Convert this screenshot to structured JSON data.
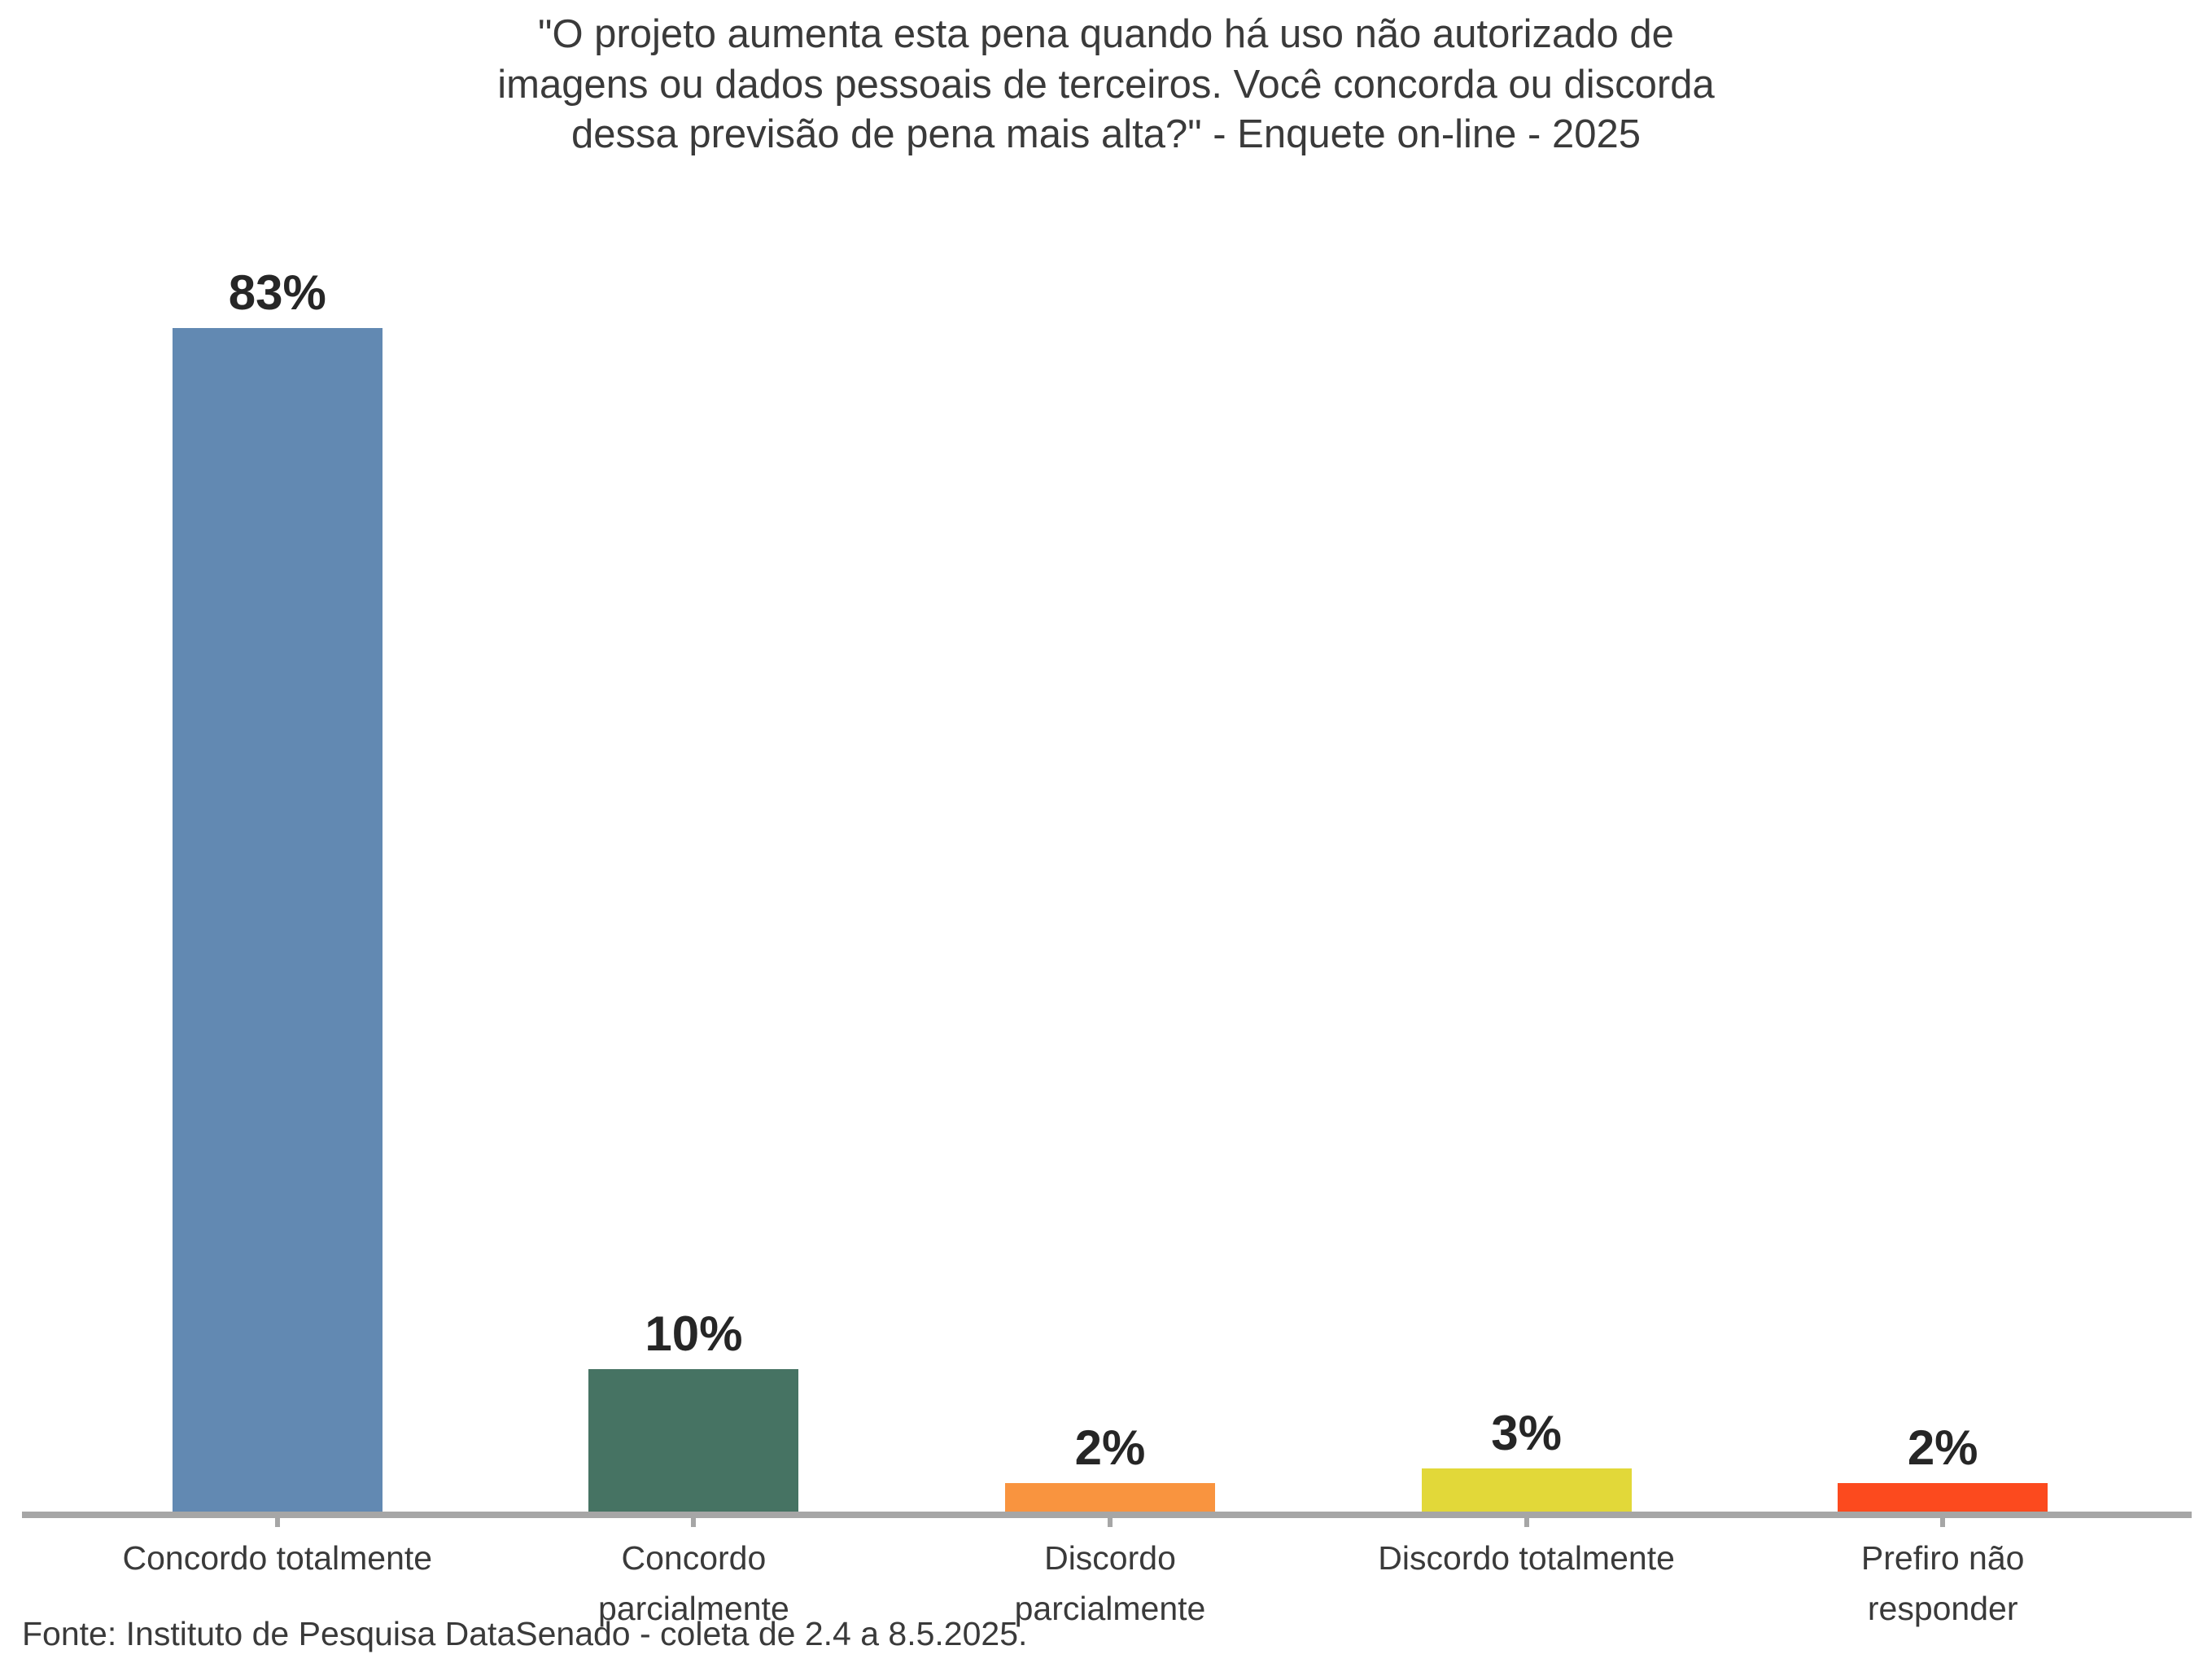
{
  "chart_data": {
    "type": "bar",
    "title": "\"O projeto aumenta esta pena quando há uso não autorizado de\nimagens ou dados pessoais de terceiros. Você concorda ou discorda\ndessa previsão de pena mais alta?\" - Enquete on-line - 2025",
    "source_note": "Fonte: Instituto de Pesquisa DataSenado - coleta de 2.4 a 8.5.2025.",
    "categories": [
      "Concordo totalmente",
      "Concordo parcialmente",
      "Discordo parcialmente",
      "Discordo totalmente",
      "Prefiro não responder"
    ],
    "category_label_lines": [
      [
        "Concordo totalmente"
      ],
      [
        "Concordo",
        "parcialmente"
      ],
      [
        "Discordo",
        "parcialmente"
      ],
      [
        "Discordo totalmente"
      ],
      [
        "Prefiro não",
        "responder"
      ]
    ],
    "values": [
      83,
      10,
      2,
      3,
      2
    ],
    "value_labels": [
      "83%",
      "10%",
      "2%",
      "3%",
      "2%"
    ],
    "bar_colors": [
      "#6289b2",
      "#467363",
      "#f9943f",
      "#e2d839",
      "#fc4a1e"
    ],
    "xlabel": "",
    "ylabel": "",
    "ylim": [
      0,
      100
    ],
    "grid": false,
    "legend": false,
    "axis_line_color": "#a6a6a6",
    "text_color": "#3a3a3a",
    "value_label_color": "#262626"
  }
}
